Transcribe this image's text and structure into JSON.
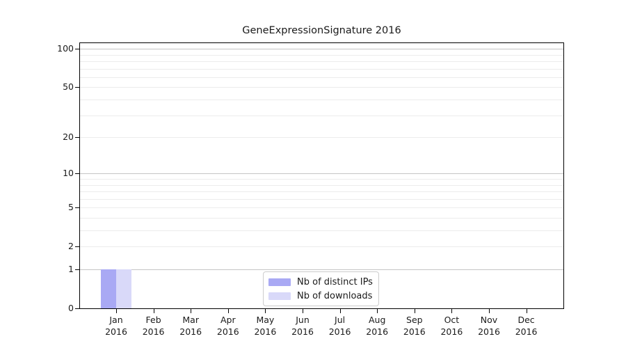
{
  "chart_data": {
    "type": "bar",
    "title": "GeneExpressionSignature 2016",
    "xlabel": "",
    "ylabel": "",
    "year_label": "2016",
    "categories": [
      "Jan",
      "Feb",
      "Mar",
      "Apr",
      "May",
      "Jun",
      "Jul",
      "Aug",
      "Sep",
      "Oct",
      "Nov",
      "Dec"
    ],
    "series": [
      {
        "name": "Nb of distinct IPs",
        "color": "#a9a9f4",
        "values": [
          1,
          0,
          0,
          0,
          0,
          0,
          0,
          0,
          0,
          0,
          0,
          0
        ]
      },
      {
        "name": "Nb of downloads",
        "color": "#d9d9f9",
        "values": [
          1,
          0,
          0,
          0,
          0,
          0,
          0,
          0,
          0,
          0,
          0,
          0
        ]
      }
    ],
    "y_axis": {
      "scale": "log10(1+x)",
      "tick_values": [
        0,
        1,
        2,
        5,
        10,
        20,
        50,
        100
      ],
      "major_gridlines": [
        1,
        10,
        100
      ],
      "minor_gridlines": [
        2,
        3,
        4,
        5,
        6,
        7,
        8,
        9,
        20,
        30,
        40,
        50,
        60,
        70,
        80,
        90
      ],
      "top_value": 113
    },
    "legend_position": "bottom-center",
    "grid": true,
    "colors": {
      "major_grid": "#c5c5c5",
      "minor_grid": "#ececec",
      "spine": "#000000",
      "text": "#1a1a1a",
      "background": "#ffffff",
      "legend_border": "#cccccc"
    }
  }
}
